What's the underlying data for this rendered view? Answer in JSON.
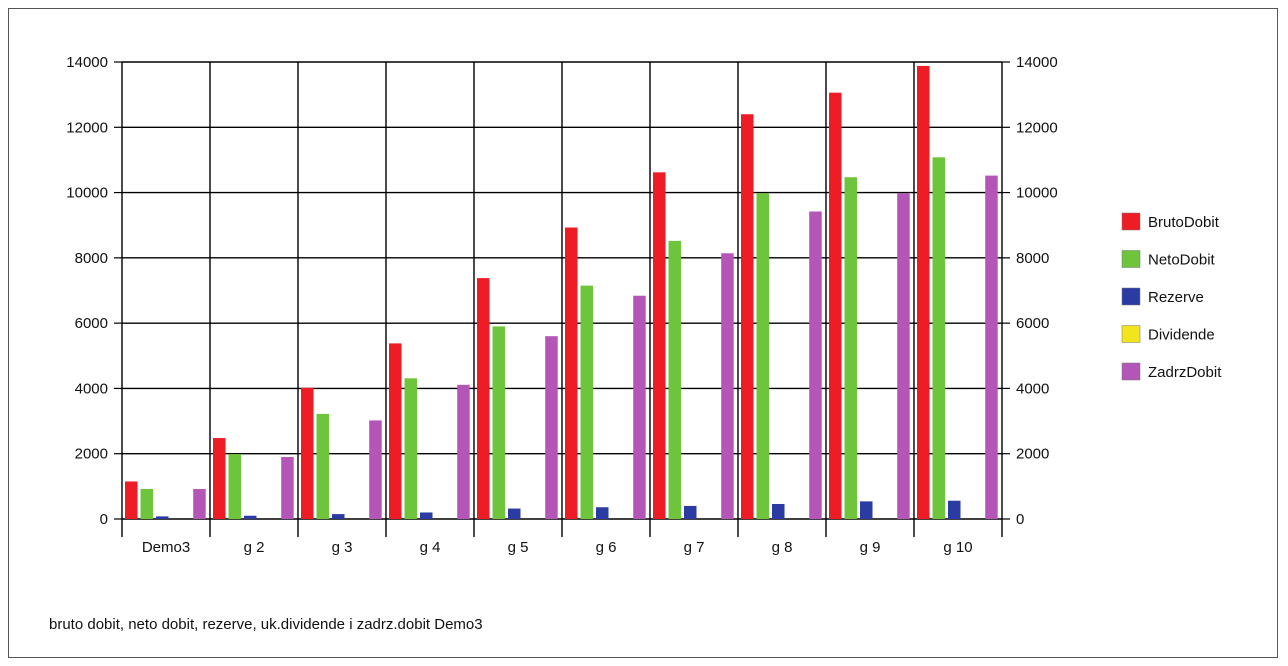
{
  "chart_data": {
    "type": "bar",
    "caption": "bruto dobit, neto dobit, rezerve, uk.dividende i zadrz.dobit Demo3",
    "categories": [
      "Demo3",
      "g 2",
      "g 3",
      "g 4",
      "g 5",
      "g 6",
      "g 7",
      "g 8",
      "g 9",
      "g 10"
    ],
    "ylim": [
      0,
      14000
    ],
    "yticks": [
      0,
      2000,
      4000,
      6000,
      8000,
      10000,
      12000,
      14000
    ],
    "grid": true,
    "legend_position": "right",
    "series": [
      {
        "name": "BrutoDobit",
        "color": "#ee1c25",
        "values": [
          1150,
          2480,
          4020,
          5380,
          7380,
          8930,
          10620,
          12400,
          13060,
          13880
        ]
      },
      {
        "name": "NetoDobit",
        "color": "#6ec43b",
        "values": [
          920,
          1990,
          3220,
          4310,
          5900,
          7150,
          8520,
          9980,
          10470,
          11080
        ]
      },
      {
        "name": "Rezerve",
        "color": "#2a3ca3",
        "values": [
          80,
          100,
          150,
          200,
          320,
          360,
          400,
          460,
          540,
          560
        ]
      },
      {
        "name": "Dividende",
        "color": "#f2e51c",
        "values": [
          0,
          0,
          0,
          0,
          0,
          0,
          0,
          0,
          0,
          0
        ]
      },
      {
        "name": "ZadrzDobit",
        "color": "#b455b8",
        "values": [
          920,
          1900,
          3020,
          4110,
          5600,
          6840,
          8140,
          9420,
          9980,
          10520
        ]
      }
    ]
  }
}
